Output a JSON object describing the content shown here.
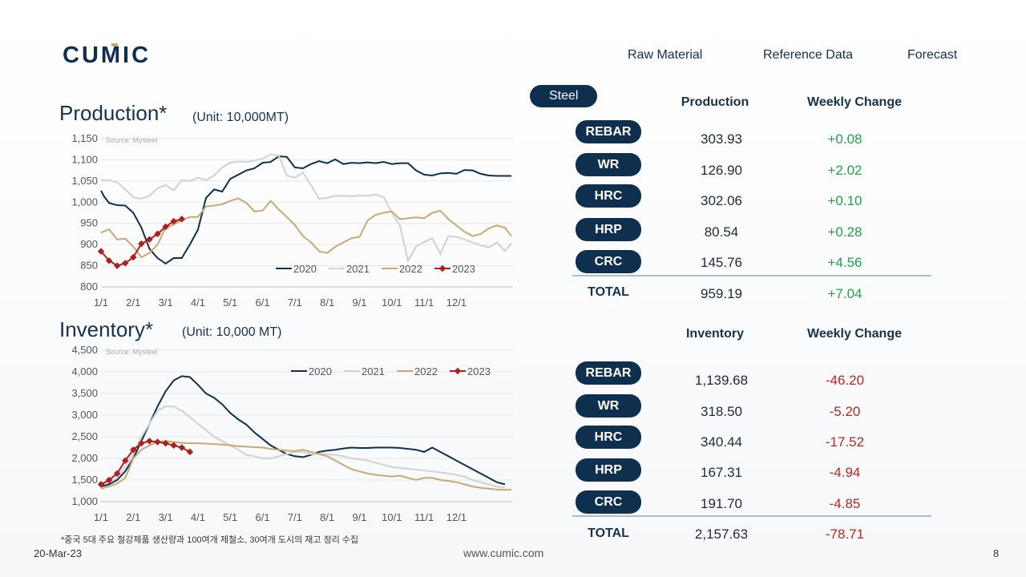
{
  "brand": {
    "logo_text": "CUMIC",
    "navy": "#0f2f4f",
    "gold": "#c8a874"
  },
  "nav": {
    "tabs": [
      {
        "label": "Steel",
        "active": true
      },
      {
        "label": "Raw Material",
        "active": false
      },
      {
        "label": "Reference Data",
        "active": false
      },
      {
        "label": "Forecast",
        "active": false
      }
    ]
  },
  "production_chart": {
    "title": "Production*",
    "unit": "(Unit: 10,000MT)",
    "source": "Source: Mysteel"
  },
  "inventory_chart": {
    "title": "Inventory*",
    "unit": "(Unit: 10,000 MT)",
    "source": "Source: Mysteel"
  },
  "production_table": {
    "col1": "Production",
    "col2": "Weekly Change",
    "rows": [
      {
        "label": "REBAR",
        "value": "303.93",
        "change": "+0.08"
      },
      {
        "label": "WR",
        "value": "126.90",
        "change": "+2.02"
      },
      {
        "label": "HRC",
        "value": "302.06",
        "change": "+0.10"
      },
      {
        "label": "HRP",
        "value": "80.54",
        "change": "+0.28"
      },
      {
        "label": "CRC",
        "value": "145.76",
        "change": "+4.56"
      }
    ],
    "total": {
      "label": "TOTAL",
      "value": "959.19",
      "change": "+7.04"
    }
  },
  "inventory_table": {
    "col1": "Inventory",
    "col2": "Weekly Change",
    "rows": [
      {
        "label": "REBAR",
        "value": "1,139.68",
        "change": "-46.20"
      },
      {
        "label": "WR",
        "value": "318.50",
        "change": "-5.20"
      },
      {
        "label": "HRC",
        "value": "340.44",
        "change": "-17.52"
      },
      {
        "label": "HRP",
        "value": "167.31",
        "change": "-4.94"
      },
      {
        "label": "CRC",
        "value": "191.70",
        "change": "-4.85"
      }
    ],
    "total": {
      "label": "TOTAL",
      "value": "2,157.63",
      "change": "-78.71"
    }
  },
  "footer": {
    "footnote": "*중국 5대 주요 철강제품 생산량과 100여개 제철소, 30여개 도시의 재고 정리 수집",
    "date": "20-Mar-23",
    "url": "www.cumic.com",
    "page": "8"
  },
  "chart_data": [
    {
      "type": "line",
      "title": "Production*",
      "ylim": [
        800,
        1150
      ],
      "yticks": [
        "800",
        "850",
        "900",
        "950",
        "1,000",
        "1,050",
        "1,100",
        "1,150"
      ],
      "xticks": [
        "1/1",
        "2/1",
        "3/1",
        "4/1",
        "5/1",
        "6/1",
        "7/1",
        "8/1",
        "9/1",
        "10/1",
        "11/1",
        "12/1"
      ],
      "grid": true,
      "legend_position": "bottom-right inside",
      "series": [
        {
          "name": "2020",
          "color": "#0f2f4f",
          "marker": false,
          "x": [
            0,
            0.1,
            0.25,
            0.5,
            0.75,
            1,
            1.25,
            1.5,
            1.75,
            2,
            2.25,
            2.5,
            2.75,
            3,
            3.25,
            3.5,
            3.75,
            4,
            4.25,
            4.5,
            4.75,
            5,
            5.25,
            5.5,
            5.75,
            6,
            6.25,
            6.5,
            6.75,
            7,
            7.25,
            7.5,
            7.75,
            8,
            8.25,
            8.5,
            8.75,
            9,
            9.25,
            9.5,
            9.75,
            10,
            10.25,
            10.5,
            10.75,
            11,
            11.25,
            11.5,
            11.75,
            12,
            12.25,
            12.5,
            12.7
          ],
          "y": [
            1027,
            1013,
            998,
            993,
            992,
            975,
            940,
            890,
            868,
            855,
            868,
            868,
            900,
            935,
            1010,
            1030,
            1025,
            1055,
            1065,
            1075,
            1080,
            1093,
            1095,
            1108,
            1107,
            1082,
            1080,
            1090,
            1097,
            1092,
            1101,
            1090,
            1093,
            1092,
            1094,
            1092,
            1095,
            1090,
            1092,
            1092,
            1075,
            1065,
            1063,
            1068,
            1069,
            1067,
            1076,
            1075,
            1067,
            1063,
            1062,
            1062,
            1062
          ]
        },
        {
          "name": "2021",
          "color": "#d4d4d4",
          "marker": false,
          "x": [
            0,
            0.25,
            0.5,
            0.75,
            1,
            1.25,
            1.5,
            1.75,
            2,
            2.25,
            2.5,
            2.75,
            3,
            3.25,
            3.5,
            3.75,
            4,
            4.25,
            4.5,
            4.75,
            5,
            5.25,
            5.5,
            5.75,
            6,
            6.25,
            6.5,
            6.75,
            7,
            7.25,
            7.5,
            7.75,
            8,
            8.25,
            8.5,
            8.75,
            9,
            9.25,
            9.5,
            9.75,
            10,
            10.25,
            10.5,
            10.75,
            11,
            11.25,
            11.5,
            11.75,
            12,
            12.25,
            12.5,
            12.7
          ],
          "y": [
            1052,
            1052,
            1047,
            1030,
            1012,
            1008,
            1015,
            1033,
            1040,
            1028,
            1052,
            1050,
            1058,
            1052,
            1063,
            1082,
            1093,
            1096,
            1095,
            1098,
            1103,
            1113,
            1110,
            1063,
            1058,
            1070,
            1040,
            1008,
            1010,
            1015,
            1015,
            1014,
            1016,
            1015,
            1018,
            1012,
            975,
            945,
            862,
            895,
            906,
            915,
            878,
            920,
            918,
            912,
            905,
            898,
            893,
            905,
            885,
            903
          ]
        },
        {
          "name": "2022",
          "color": "#c8a874",
          "marker": false,
          "x": [
            0,
            0.25,
            0.5,
            0.75,
            1,
            1.25,
            1.5,
            1.75,
            2,
            2.25,
            2.5,
            2.75,
            3,
            3.25,
            3.5,
            3.75,
            4,
            4.25,
            4.5,
            4.75,
            5,
            5.25,
            5.5,
            5.75,
            6,
            6.25,
            6.5,
            6.75,
            7,
            7.25,
            7.5,
            7.75,
            8,
            8.25,
            8.5,
            8.75,
            9,
            9.25,
            9.5,
            9.75,
            10,
            10.25,
            10.5,
            10.75,
            11,
            11.25,
            11.5,
            11.75,
            12,
            12.25,
            12.5,
            12.7
          ],
          "y": [
            928,
            936,
            912,
            914,
            895,
            870,
            880,
            900,
            940,
            947,
            958,
            965,
            965,
            990,
            992,
            995,
            1003,
            1009,
            998,
            978,
            980,
            1003,
            983,
            965,
            946,
            920,
            905,
            884,
            880,
            895,
            905,
            915,
            918,
            957,
            970,
            975,
            978,
            960,
            962,
            964,
            962,
            975,
            980,
            960,
            945,
            930,
            920,
            925,
            938,
            945,
            940,
            920
          ]
        },
        {
          "name": "2023",
          "color": "#b01e1e",
          "marker": true,
          "x": [
            0,
            0.25,
            0.5,
            0.75,
            1,
            1.25,
            1.5,
            1.75,
            2,
            2.25,
            2.5
          ],
          "y": [
            884,
            862,
            850,
            856,
            870,
            902,
            912,
            925,
            942,
            955,
            960
          ]
        }
      ]
    },
    {
      "type": "line",
      "title": "Inventory*",
      "ylim": [
        1000,
        4500
      ],
      "yticks": [
        "1,000",
        "1,500",
        "2,000",
        "2,500",
        "3,000",
        "3,500",
        "4,000",
        "4,500"
      ],
      "xticks": [
        "1/1",
        "2/1",
        "3/1",
        "4/1",
        "5/1",
        "6/1",
        "7/1",
        "8/1",
        "9/1",
        "10/1",
        "11/1",
        "12/1"
      ],
      "grid": true,
      "legend_position": "top-right inside",
      "series": [
        {
          "name": "2020",
          "color": "#0f2f4f",
          "marker": false,
          "x": [
            0,
            0.25,
            0.5,
            0.75,
            1,
            1.25,
            1.5,
            1.75,
            2,
            2.25,
            2.5,
            2.75,
            3,
            3.25,
            3.5,
            3.75,
            4,
            4.25,
            4.5,
            4.75,
            5,
            5.25,
            5.5,
            5.75,
            6,
            6.25,
            6.5,
            6.75,
            7,
            7.25,
            7.5,
            7.75,
            8,
            8.25,
            8.5,
            8.75,
            9,
            9.25,
            9.5,
            9.75,
            10,
            10.25,
            10.5,
            10.75,
            11,
            11.25,
            11.5,
            11.75,
            12,
            12.25,
            12.5
          ],
          "y": [
            1350,
            1400,
            1500,
            1700,
            2000,
            2400,
            2800,
            3200,
            3550,
            3800,
            3900,
            3880,
            3700,
            3500,
            3400,
            3250,
            3050,
            2900,
            2780,
            2600,
            2450,
            2300,
            2200,
            2100,
            2050,
            2030,
            2080,
            2150,
            2180,
            2200,
            2230,
            2250,
            2240,
            2240,
            2250,
            2250,
            2250,
            2240,
            2220,
            2200,
            2150,
            2250,
            2150,
            2050,
            1950,
            1850,
            1750,
            1650,
            1550,
            1450,
            1400
          ]
        },
        {
          "name": "2021",
          "color": "#d4d4d4",
          "marker": false,
          "x": [
            0,
            0.25,
            0.5,
            0.75,
            1,
            1.25,
            1.5,
            1.75,
            2,
            2.25,
            2.5,
            2.75,
            3,
            3.25,
            3.5,
            3.75,
            4,
            4.25,
            4.5,
            4.75,
            5,
            5.25,
            5.5,
            5.75,
            6,
            6.25,
            6.5,
            6.75,
            7,
            7.25,
            7.5,
            7.75,
            8,
            8.25,
            8.5,
            8.75,
            9,
            9.25,
            9.5,
            9.75,
            10,
            10.25,
            10.5,
            10.75,
            11,
            11.25,
            11.5,
            11.75,
            12,
            12.25,
            12.5
          ],
          "y": [
            1400,
            1450,
            1550,
            1800,
            2100,
            2500,
            2800,
            3100,
            3200,
            3200,
            3100,
            2950,
            2800,
            2650,
            2500,
            2400,
            2300,
            2200,
            2080,
            2050,
            2000,
            2000,
            2050,
            2100,
            2150,
            2150,
            2100,
            2100,
            2100,
            2080,
            2050,
            2000,
            1980,
            1950,
            1900,
            1850,
            1800,
            1780,
            1760,
            1740,
            1720,
            1700,
            1680,
            1650,
            1620,
            1580,
            1500,
            1450,
            1400,
            1350,
            1320
          ]
        },
        {
          "name": "2022",
          "color": "#c8a874",
          "marker": false,
          "x": [
            0,
            0.25,
            0.5,
            0.75,
            1,
            1.25,
            1.5,
            1.75,
            2,
            2.25,
            2.5,
            2.75,
            3,
            3.25,
            3.5,
            3.75,
            4,
            4.25,
            4.5,
            4.75,
            5,
            5.25,
            5.5,
            5.75,
            6,
            6.25,
            6.5,
            6.75,
            7,
            7.25,
            7.5,
            7.75,
            8,
            8.25,
            8.5,
            8.75,
            9,
            9.25,
            9.5,
            9.75,
            10,
            10.25,
            10.5,
            10.75,
            11,
            11.25,
            11.5,
            11.75,
            12,
            12.25,
            12.5,
            12.7
          ],
          "y": [
            1300,
            1350,
            1420,
            1550,
            2000,
            2200,
            2300,
            2380,
            2400,
            2380,
            2360,
            2350,
            2350,
            2340,
            2330,
            2320,
            2300,
            2280,
            2270,
            2260,
            2250,
            2220,
            2200,
            2180,
            2170,
            2200,
            2150,
            2100,
            2050,
            1950,
            1850,
            1750,
            1700,
            1650,
            1620,
            1600,
            1580,
            1600,
            1550,
            1500,
            1550,
            1550,
            1500,
            1480,
            1450,
            1400,
            1350,
            1320,
            1300,
            1280,
            1270,
            1280
          ]
        },
        {
          "name": "2023",
          "color": "#b01e1e",
          "marker": true,
          "x": [
            0,
            0.25,
            0.5,
            0.75,
            1,
            1.25,
            1.5,
            1.75,
            2,
            2.25,
            2.5,
            2.75
          ],
          "y": [
            1400,
            1500,
            1650,
            1950,
            2200,
            2350,
            2400,
            2380,
            2350,
            2300,
            2250,
            2150
          ]
        }
      ]
    }
  ]
}
